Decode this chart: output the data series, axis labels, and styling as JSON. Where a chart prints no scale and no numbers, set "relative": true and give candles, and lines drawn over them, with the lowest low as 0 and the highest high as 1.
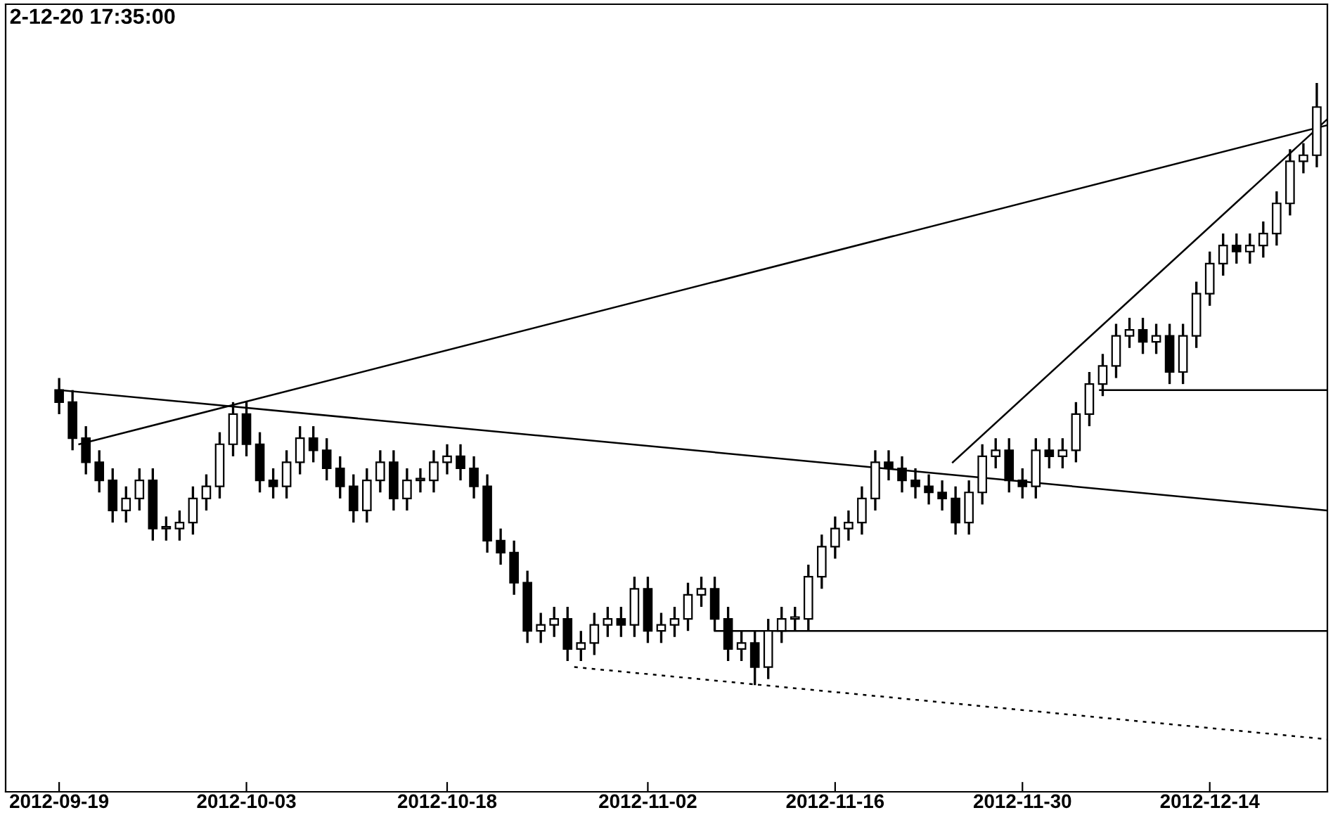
{
  "chart_data": {
    "type": "candlestick",
    "title": "2-12-20 17:35:00",
    "relative": true,
    "x": [
      "2012-09-19",
      "2012-09-20",
      "2012-09-21",
      "2012-09-22",
      "2012-09-23",
      "2012-09-24",
      "2012-09-25",
      "2012-09-26",
      "2012-09-27",
      "2012-09-28",
      "2012-09-29",
      "2012-09-30",
      "2012-10-01",
      "2012-10-02",
      "2012-10-03",
      "2012-10-04",
      "2012-10-05",
      "2012-10-06",
      "2012-10-07",
      "2012-10-08",
      "2012-10-09",
      "2012-10-10",
      "2012-10-11",
      "2012-10-12",
      "2012-10-13",
      "2012-10-14",
      "2012-10-15",
      "2012-10-16",
      "2012-10-17",
      "2012-10-18",
      "2012-10-19",
      "2012-10-20",
      "2012-10-21",
      "2012-10-22",
      "2012-10-23",
      "2012-10-24",
      "2012-10-25",
      "2012-10-26",
      "2012-10-27",
      "2012-10-28",
      "2012-10-29",
      "2012-10-30",
      "2012-10-31",
      "2012-11-01",
      "2012-11-02",
      "2012-11-03",
      "2012-11-04",
      "2012-11-05",
      "2012-11-06",
      "2012-11-07",
      "2012-11-08",
      "2012-11-09",
      "2012-11-10",
      "2012-11-11",
      "2012-11-12",
      "2012-11-13",
      "2012-11-14",
      "2012-11-15",
      "2012-11-16",
      "2012-11-17",
      "2012-11-18",
      "2012-11-19",
      "2012-11-20",
      "2012-11-21",
      "2012-11-22",
      "2012-11-23",
      "2012-11-24",
      "2012-11-25",
      "2012-11-26",
      "2012-11-27",
      "2012-11-28",
      "2012-11-29",
      "2012-11-30",
      "2012-12-01",
      "2012-12-02",
      "2012-12-03",
      "2012-12-04",
      "2012-12-05",
      "2012-12-06",
      "2012-12-07",
      "2012-12-08",
      "2012-12-09",
      "2012-12-10",
      "2012-12-11",
      "2012-12-12",
      "2012-12-13",
      "2012-12-14",
      "2012-12-15",
      "2012-12-16",
      "2012-12-17",
      "2012-12-18",
      "2012-12-19",
      "2012-12-20",
      "2012-12-21",
      "2012-12-22"
    ],
    "ohlc": [
      [
        0.49,
        0.51,
        0.45,
        0.47
      ],
      [
        0.47,
        0.49,
        0.39,
        0.41
      ],
      [
        0.41,
        0.43,
        0.35,
        0.37
      ],
      [
        0.37,
        0.39,
        0.32,
        0.34
      ],
      [
        0.34,
        0.36,
        0.27,
        0.29
      ],
      [
        0.29,
        0.33,
        0.27,
        0.31
      ],
      [
        0.31,
        0.36,
        0.29,
        0.34
      ],
      [
        0.34,
        0.36,
        0.24,
        0.26
      ],
      [
        0.26,
        0.28,
        0.24,
        0.26
      ],
      [
        0.26,
        0.29,
        0.24,
        0.27
      ],
      [
        0.27,
        0.33,
        0.25,
        0.31
      ],
      [
        0.31,
        0.35,
        0.29,
        0.33
      ],
      [
        0.33,
        0.42,
        0.31,
        0.4
      ],
      [
        0.4,
        0.47,
        0.38,
        0.45
      ],
      [
        0.45,
        0.47,
        0.38,
        0.4
      ],
      [
        0.4,
        0.42,
        0.32,
        0.34
      ],
      [
        0.34,
        0.36,
        0.31,
        0.33
      ],
      [
        0.33,
        0.39,
        0.31,
        0.37
      ],
      [
        0.37,
        0.43,
        0.35,
        0.41
      ],
      [
        0.41,
        0.43,
        0.37,
        0.39
      ],
      [
        0.39,
        0.41,
        0.34,
        0.36
      ],
      [
        0.36,
        0.38,
        0.31,
        0.33
      ],
      [
        0.33,
        0.35,
        0.27,
        0.29
      ],
      [
        0.29,
        0.36,
        0.27,
        0.34
      ],
      [
        0.34,
        0.39,
        0.32,
        0.37
      ],
      [
        0.37,
        0.39,
        0.29,
        0.31
      ],
      [
        0.31,
        0.36,
        0.29,
        0.34
      ],
      [
        0.34,
        0.36,
        0.32,
        0.34
      ],
      [
        0.34,
        0.39,
        0.32,
        0.37
      ],
      [
        0.37,
        0.4,
        0.35,
        0.38
      ],
      [
        0.38,
        0.4,
        0.34,
        0.36
      ],
      [
        0.36,
        0.38,
        0.31,
        0.33
      ],
      [
        0.33,
        0.35,
        0.22,
        0.24
      ],
      [
        0.24,
        0.26,
        0.2,
        0.22
      ],
      [
        0.22,
        0.24,
        0.15,
        0.17
      ],
      [
        0.17,
        0.19,
        0.07,
        0.09
      ],
      [
        0.09,
        0.12,
        0.07,
        0.1
      ],
      [
        0.1,
        0.13,
        0.08,
        0.11
      ],
      [
        0.11,
        0.13,
        0.04,
        0.06
      ],
      [
        0.06,
        0.09,
        0.04,
        0.07
      ],
      [
        0.07,
        0.12,
        0.05,
        0.1
      ],
      [
        0.1,
        0.13,
        0.08,
        0.11
      ],
      [
        0.11,
        0.13,
        0.08,
        0.1
      ],
      [
        0.1,
        0.18,
        0.08,
        0.16
      ],
      [
        0.16,
        0.18,
        0.07,
        0.09
      ],
      [
        0.09,
        0.12,
        0.07,
        0.1
      ],
      [
        0.1,
        0.13,
        0.08,
        0.11
      ],
      [
        0.11,
        0.17,
        0.09,
        0.15
      ],
      [
        0.15,
        0.18,
        0.13,
        0.16
      ],
      [
        0.16,
        0.18,
        0.09,
        0.11
      ],
      [
        0.11,
        0.13,
        0.04,
        0.06
      ],
      [
        0.06,
        0.09,
        0.04,
        0.07
      ],
      [
        0.07,
        0.09,
        0,
        0.03
      ],
      [
        0.03,
        0.11,
        0.01,
        0.09
      ],
      [
        0.09,
        0.13,
        0.07,
        0.11
      ],
      [
        0.11,
        0.13,
        0.09,
        0.11
      ],
      [
        0.11,
        0.2,
        0.09,
        0.18
      ],
      [
        0.18,
        0.25,
        0.16,
        0.23
      ],
      [
        0.23,
        0.28,
        0.21,
        0.26
      ],
      [
        0.26,
        0.29,
        0.24,
        0.27
      ],
      [
        0.27,
        0.33,
        0.25,
        0.31
      ],
      [
        0.31,
        0.39,
        0.29,
        0.37
      ],
      [
        0.37,
        0.39,
        0.34,
        0.36
      ],
      [
        0.36,
        0.38,
        0.32,
        0.34
      ],
      [
        0.34,
        0.36,
        0.31,
        0.33
      ],
      [
        0.33,
        0.35,
        0.3,
        0.32
      ],
      [
        0.32,
        0.34,
        0.29,
        0.31
      ],
      [
        0.31,
        0.33,
        0.25,
        0.27
      ],
      [
        0.27,
        0.34,
        0.25,
        0.32
      ],
      [
        0.32,
        0.4,
        0.3,
        0.38
      ],
      [
        0.38,
        0.41,
        0.36,
        0.39
      ],
      [
        0.39,
        0.41,
        0.32,
        0.34
      ],
      [
        0.34,
        0.36,
        0.31,
        0.33
      ],
      [
        0.33,
        0.41,
        0.31,
        0.39
      ],
      [
        0.39,
        0.41,
        0.36,
        0.38
      ],
      [
        0.38,
        0.41,
        0.36,
        0.39
      ],
      [
        0.39,
        0.47,
        0.37,
        0.45
      ],
      [
        0.45,
        0.52,
        0.43,
        0.5
      ],
      [
        0.5,
        0.55,
        0.48,
        0.53
      ],
      [
        0.53,
        0.6,
        0.51,
        0.58
      ],
      [
        0.58,
        0.61,
        0.56,
        0.59
      ],
      [
        0.59,
        0.61,
        0.55,
        0.57
      ],
      [
        0.57,
        0.6,
        0.55,
        0.58
      ],
      [
        0.58,
        0.6,
        0.5,
        0.52
      ],
      [
        0.52,
        0.6,
        0.5,
        0.58
      ],
      [
        0.58,
        0.67,
        0.56,
        0.65
      ],
      [
        0.65,
        0.72,
        0.63,
        0.7
      ],
      [
        0.7,
        0.75,
        0.68,
        0.73
      ],
      [
        0.73,
        0.75,
        0.7,
        0.72
      ],
      [
        0.72,
        0.75,
        0.7,
        0.73
      ],
      [
        0.73,
        0.77,
        0.71,
        0.75
      ],
      [
        0.75,
        0.82,
        0.73,
        0.8
      ],
      [
        0.8,
        0.89,
        0.78,
        0.87
      ],
      [
        0.87,
        0.9,
        0.85,
        0.88
      ],
      [
        0.88,
        1,
        0.86,
        0.96
      ]
    ],
    "series": [
      {
        "type": "line",
        "color": "#000000",
        "line_style": "solid",
        "x": [
          "2012-09-20T12:00",
          "2012-12-22T19:00"
        ],
        "values": [
          0.4,
          0.93
        ]
      },
      {
        "type": "line",
        "color": "#000000",
        "line_style": "solid",
        "x": [
          "2012-09-19",
          "2012-12-22T19:00"
        ],
        "values": [
          0.49,
          0.29
        ]
      },
      {
        "type": "line",
        "color": "#000000",
        "line_style": "solid",
        "x": [
          "2012-11-24T19:00",
          "2012-12-22T19:00"
        ],
        "values": [
          0.37,
          0.94
        ]
      },
      {
        "type": "line",
        "color": "#000000",
        "line_style": "solid",
        "x": [
          "2012-12-05T19:00",
          "2012-12-22T19:00"
        ],
        "values": [
          0.49,
          0.49
        ]
      },
      {
        "type": "line",
        "color": "#000000",
        "line_style": "solid",
        "x": [
          "2012-11-07",
          "2012-12-22T19:00"
        ],
        "values": [
          0.09,
          0.09
        ]
      },
      {
        "type": "line",
        "color": "#000000",
        "line_style": "dotted",
        "x": [
          "2012-10-27T12:00",
          "2012-12-22T19:00"
        ],
        "values": [
          0.03,
          -0.09
        ]
      }
    ],
    "xlim": [
      "2012-09-15",
      "2012-12-22T19:00"
    ],
    "xticks": [
      "2012-09-19",
      "2012-10-03",
      "2012-10-18",
      "2012-11-02",
      "2012-11-16",
      "2012-11-30",
      "2012-12-14"
    ],
    "tick_labels": "x"
  }
}
